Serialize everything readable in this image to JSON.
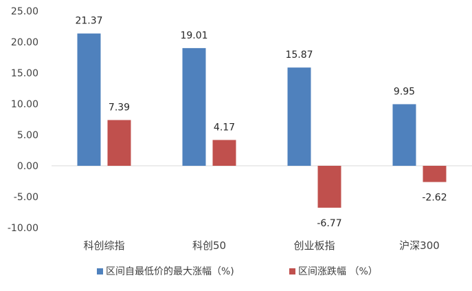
{
  "chart_data": {
    "type": "bar",
    "categories": [
      "科创综指",
      "科创50",
      "创业板指",
      "沪深300"
    ],
    "series": [
      {
        "name": "区间自最低价的最大涨幅（%)",
        "values": [
          21.37,
          19.01,
          15.87,
          9.95
        ],
        "color": "#4f81bd"
      },
      {
        "name": "区间涨跌幅 （%）",
        "values": [
          7.39,
          4.17,
          -6.77,
          -2.62
        ],
        "color": "#c0504d"
      }
    ],
    "value_labels": [
      [
        "21.37",
        "19.01",
        "15.87",
        "9.95"
      ],
      [
        "7.39",
        "4.17",
        "-6.77",
        "-2.62"
      ]
    ],
    "yticks": [
      -10,
      -5,
      0,
      5,
      10,
      15,
      20,
      25
    ],
    "ytick_labels": [
      "-10.00",
      "-5.00",
      "0.00",
      "5.00",
      "10.00",
      "15.00",
      "20.00",
      "25.00"
    ],
    "ylim": [
      -10,
      25
    ],
    "grid": false,
    "legend_position": "bottom-center"
  }
}
